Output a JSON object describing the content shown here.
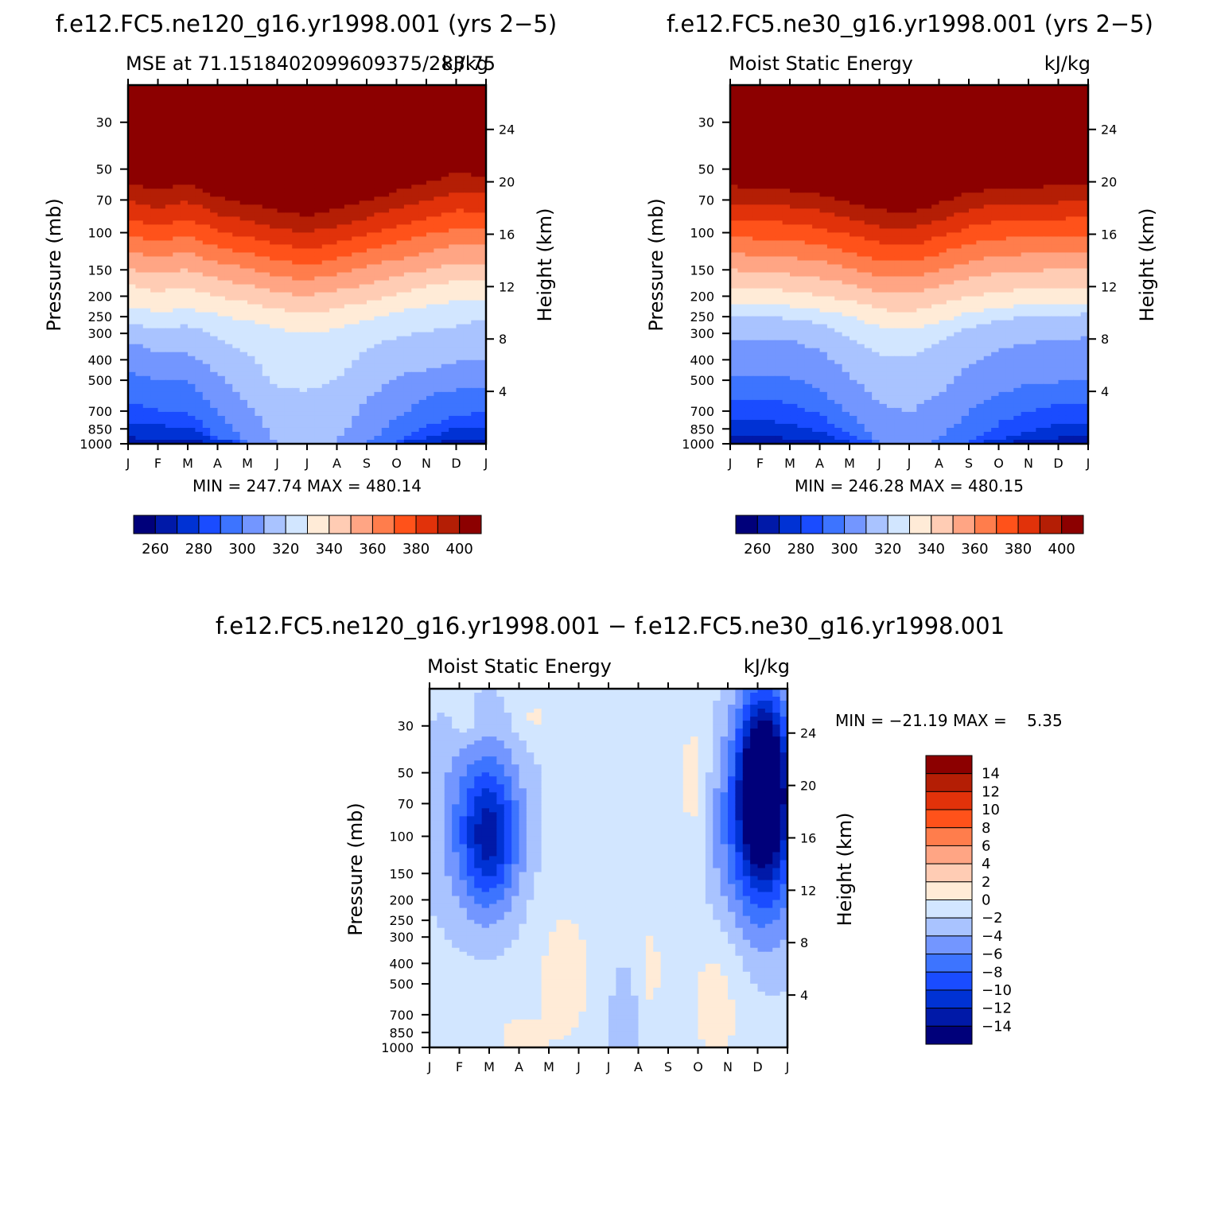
{
  "panels": [
    {
      "title": "f.e12.FC5.ne120_g16.yr1998.001 (yrs 2−5)",
      "left_label": "MSE at 71.1518402099609375/283.75",
      "right_label": "kJ/kg",
      "minmax": "MIN = 247.74 MAX = 480.14"
    },
    {
      "title": "f.e12.FC5.ne30_g16.yr1998.001 (yrs 2−5)",
      "left_label": "Moist Static Energy",
      "right_label": "kJ/kg",
      "minmax": "MIN = 246.28 MAX = 480.15"
    },
    {
      "title": "f.e12.FC5.ne120_g16.yr1998.001 − f.e12.FC5.ne30_g16.yr1998.001",
      "left_label": "Moist Static Energy",
      "right_label": "kJ/kg",
      "minmax": "MIN = −21.19 MAX =    5.35"
    }
  ],
  "chart_data": [
    {
      "type": "heatmap",
      "title": "f.e12.FC5.ne120_g16.yr1998.001 (yrs 2−5)",
      "xlabel": "",
      "ylabel": "Pressure (mb)",
      "y2label": "Height (km)",
      "y_scale": "log",
      "ylim": [
        1000,
        20
      ],
      "x_ticks": [
        "J",
        "F",
        "M",
        "A",
        "M",
        "J",
        "J",
        "A",
        "S",
        "O",
        "N",
        "D",
        "J"
      ],
      "y_ticks": [
        30,
        50,
        70,
        100,
        150,
        200,
        250,
        300,
        400,
        500,
        700,
        850,
        1000
      ],
      "y2_ticks": [
        4,
        8,
        12,
        16,
        20,
        24
      ],
      "units": "kJ/kg",
      "contour_levels": [
        260,
        270,
        280,
        290,
        300,
        310,
        320,
        330,
        340,
        350,
        360,
        370,
        380,
        390,
        400
      ],
      "min": 247.74,
      "max": 480.14,
      "boundary_pressures_by_month": {
        "x": [
          0,
          1,
          2,
          3,
          4,
          5,
          6,
          7,
          8,
          9,
          10,
          11,
          12
        ],
        "levels": [
          {
            "level": 260,
            "p": [
              990,
              995,
              998,
              1000,
              1000,
              1000,
              1000,
              1000,
              1000,
              1000,
              1000,
              995,
              990
            ]
          },
          {
            "level": 270,
            "p": [
              935,
              945,
              950,
              1000,
              1000,
              1000,
              1000,
              1000,
              1000,
              1000,
              1000,
              965,
              945
            ]
          },
          {
            "level": 280,
            "p": [
              800,
              820,
              830,
              960,
              1000,
              1000,
              1000,
              1000,
              1000,
              1000,
              930,
              845,
              830
            ]
          },
          {
            "level": 290,
            "p": [
              640,
              690,
              700,
              930,
              1000,
              1000,
              1000,
              1000,
              1000,
              1000,
              830,
              740,
              700
            ]
          },
          {
            "level": 300,
            "p": [
              460,
              505,
              505,
              720,
              980,
              1000,
              1000,
              1000,
              1000,
              760,
              590,
              555,
              540
            ]
          },
          {
            "level": 310,
            "p": [
              325,
              370,
              370,
              460,
              640,
              990,
              1000,
              990,
              620,
              480,
              445,
              410,
              395
            ]
          },
          {
            "level": 320,
            "p": [
              265,
              290,
              275,
              310,
              370,
              540,
              560,
              500,
              355,
              315,
              295,
              275,
              260
            ]
          },
          {
            "level": 330,
            "p": [
              222,
              237,
              228,
              245,
              262,
              287,
              300,
              285,
              258,
              237,
              222,
              212,
              207
            ]
          },
          {
            "level": 340,
            "p": [
              178,
              190,
              182,
              200,
              213,
              230,
              245,
              230,
              212,
              195,
              180,
              170,
              168
            ]
          },
          {
            "level": 350,
            "p": [
              148,
              157,
              150,
              166,
              177,
              190,
              200,
              188,
              175,
              162,
              150,
              140,
              140
            ]
          },
          {
            "level": 360,
            "p": [
              123,
              131,
              124,
              138,
              148,
              160,
              168,
              158,
              145,
              134,
              124,
              115,
              115
            ]
          },
          {
            "level": 370,
            "p": [
              104,
              110,
              104,
              117,
              125,
              135,
              142,
              133,
              122,
              112,
              103,
              95,
              96
            ]
          },
          {
            "level": 380,
            "p": [
              86,
              92,
              86,
              98,
              105,
              114,
              120,
              112,
              102,
              93,
              85,
              78,
              80
            ]
          },
          {
            "level": 390,
            "p": [
              71,
              76,
              71,
              82,
              88,
              96,
              100,
              94,
              85,
              77,
              70,
              64,
              66
            ]
          },
          {
            "level": 400,
            "p": [
              59,
              63,
              59,
              68,
              73,
              79,
              83,
              78,
              71,
              64,
              58,
              52,
              55
            ]
          }
        ]
      }
    },
    {
      "type": "heatmap",
      "title": "f.e12.FC5.ne30_g16.yr1998.001 (yrs 2−5)",
      "xlabel": "",
      "ylabel": "Pressure (mb)",
      "y2label": "Height (km)",
      "y_scale": "log",
      "ylim": [
        1000,
        20
      ],
      "x_ticks": [
        "J",
        "F",
        "M",
        "A",
        "M",
        "J",
        "J",
        "A",
        "S",
        "O",
        "N",
        "D",
        "J"
      ],
      "y_ticks": [
        30,
        50,
        70,
        100,
        150,
        200,
        250,
        300,
        400,
        500,
        700,
        850,
        1000
      ],
      "y2_ticks": [
        4,
        8,
        12,
        16,
        20,
        24
      ],
      "units": "kJ/kg",
      "contour_levels": [
        260,
        270,
        280,
        290,
        300,
        310,
        320,
        330,
        340,
        350,
        360,
        370,
        380,
        390,
        400
      ],
      "min": 246.28,
      "max": 480.15,
      "boundary_pressures_by_month": {
        "x": [
          0,
          1,
          2,
          3,
          4,
          5,
          6,
          7,
          8,
          9,
          10,
          11,
          12
        ],
        "levels": [
          {
            "level": 260,
            "p": [
              985,
              990,
              995,
              1000,
              1000,
              1000,
              1000,
              1000,
              1000,
              1000,
              995,
              990,
              985
            ]
          },
          {
            "level": 270,
            "p": [
              925,
              925,
              940,
              980,
              1000,
              1000,
              1000,
              1000,
              1000,
              1000,
              960,
              935,
              930
            ]
          },
          {
            "level": 280,
            "p": [
              770,
              775,
              800,
              880,
              990,
              1000,
              1000,
              1000,
              1000,
              960,
              870,
              800,
              790
            ]
          },
          {
            "level": 290,
            "p": [
              625,
              620,
              640,
              730,
              920,
              1000,
              1000,
              1000,
              1000,
              800,
              700,
              655,
              650
            ]
          },
          {
            "level": 300,
            "p": [
              470,
              470,
              480,
              560,
              720,
              990,
              1000,
              970,
              700,
              580,
              520,
              510,
              500
            ]
          },
          {
            "level": 310,
            "p": [
              318,
              318,
              325,
              360,
              470,
              650,
              710,
              580,
              430,
              355,
              335,
              320,
              315
            ]
          },
          {
            "level": 320,
            "p": [
              245,
              252,
              255,
              270,
              310,
              380,
              390,
              330,
              280,
              260,
              250,
              245,
              243
            ]
          },
          {
            "level": 330,
            "p": [
              215,
              220,
              222,
              232,
              250,
              280,
              290,
              265,
              240,
              228,
              220,
              218,
              215
            ]
          },
          {
            "level": 340,
            "p": [
              182,
              185,
              188,
              198,
              210,
              230,
              240,
              220,
              200,
              190,
              185,
              182,
              180
            ]
          },
          {
            "level": 350,
            "p": [
              150,
              154,
              157,
              164,
              175,
              190,
              196,
              180,
              165,
              155,
              152,
              150,
              148
            ]
          },
          {
            "level": 360,
            "p": [
              125,
              128,
              131,
              137,
              147,
              160,
              164,
              150,
              137,
              129,
              126,
              125,
              123
            ]
          },
          {
            "level": 370,
            "p": [
              104,
              107,
              109,
              115,
              124,
              134,
              138,
              126,
              114,
              107,
              105,
              104,
              103
            ]
          },
          {
            "level": 380,
            "p": [
              86,
              88,
              90,
              95,
              103,
              112,
              116,
              105,
              94,
              88,
              87,
              86,
              85
            ]
          },
          {
            "level": 390,
            "p": [
              72,
              74,
              75,
              79,
              86,
              94,
              97,
              88,
              78,
              73,
              73,
              72,
              71
            ]
          },
          {
            "level": 400,
            "p": [
              60,
              62,
              63,
              66,
              72,
              78,
              80,
              73,
              65,
              61,
              61,
              60,
              59
            ]
          }
        ]
      }
    },
    {
      "type": "heatmap",
      "title": "f.e12.FC5.ne120_g16.yr1998.001 − f.e12.FC5.ne30_g16.yr1998.001",
      "xlabel": "",
      "ylabel": "Pressure (mb)",
      "y2label": "Height (km)",
      "y_scale": "log",
      "ylim": [
        1000,
        20
      ],
      "x_ticks": [
        "J",
        "F",
        "M",
        "A",
        "M",
        "J",
        "J",
        "A",
        "S",
        "O",
        "N",
        "D",
        "J"
      ],
      "y_ticks": [
        30,
        50,
        70,
        100,
        150,
        200,
        250,
        300,
        400,
        500,
        700,
        850,
        1000
      ],
      "y2_ticks": [
        4,
        8,
        12,
        16,
        20,
        24
      ],
      "units": "kJ/kg",
      "contour_levels": [
        -14,
        -12,
        -10,
        -8,
        -6,
        -4,
        -2,
        0,
        2,
        4,
        6,
        8,
        10,
        12,
        14
      ],
      "min": -21.19,
      "max": 5.35,
      "background_value": -1,
      "anomalies": [
        {
          "x": 2.0,
          "p": 100,
          "dx": 0.95,
          "dlogp": 0.95,
          "v": -11
        },
        {
          "x": 1.5,
          "p": 80,
          "dx": 1.9,
          "dlogp": 1.5,
          "v": -5
        },
        {
          "x": 1.2,
          "p": 28,
          "dx": 0.45,
          "dlogp": 0.3,
          "v": 1
        },
        {
          "x": 3.5,
          "p": 28,
          "dx": 0.7,
          "dlogp": 0.3,
          "v": 1
        },
        {
          "x": 11.2,
          "p": 55,
          "dx": 0.8,
          "dlogp": 1.2,
          "v": -20
        },
        {
          "x": 11.0,
          "p": 100,
          "dx": 1.7,
          "dlogp": 1.6,
          "v": -9
        },
        {
          "x": 8.9,
          "p": 60,
          "dx": 0.55,
          "dlogp": 1.1,
          "v": 2
        },
        {
          "x": 6.5,
          "p": 900,
          "dx": 0.5,
          "dlogp": 1.0,
          "v": -4
        },
        {
          "x": 9.7,
          "p": 500,
          "dx": 1.0,
          "dlogp": 1.2,
          "v": 1.5
        },
        {
          "x": 4.5,
          "p": 450,
          "dx": 1.0,
          "dlogp": 1.1,
          "v": 1
        },
        {
          "x": 3.0,
          "p": 950,
          "dx": 0.7,
          "dlogp": 0.35,
          "v": 1.5
        },
        {
          "x": 7.4,
          "p": 420,
          "dx": 0.35,
          "dlogp": 0.6,
          "v": 1
        }
      ]
    }
  ]
}
